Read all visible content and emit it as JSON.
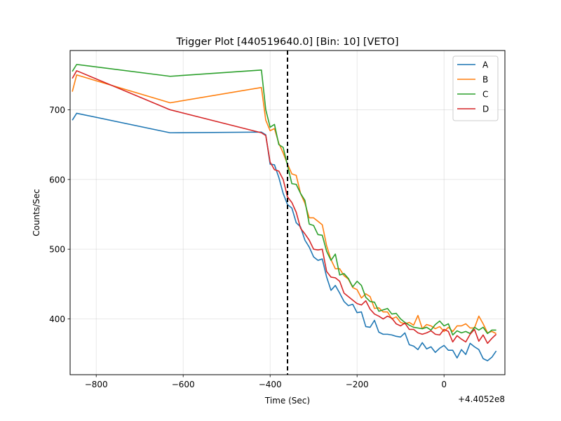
{
  "chart_data": {
    "type": "line",
    "title": "Trigger Plot [440519640.0] [Bin: 10] [VETO]",
    "xlabel": "Time (Sec)",
    "ylabel": "Counts/Sec",
    "x_offset_label": "+4.4052e8",
    "xlim": [
      -860,
      140
    ],
    "ylim": [
      320,
      785
    ],
    "xticks": [
      -800,
      -600,
      -400,
      -200,
      0
    ],
    "xtick_labels": [
      "−800",
      "−600",
      "−400",
      "−200",
      "0"
    ],
    "yticks": [
      400,
      500,
      600,
      700
    ],
    "ytick_labels": [
      "400",
      "500",
      "600",
      "700"
    ],
    "grid": true,
    "legend_position": "top-right",
    "vline": {
      "x": -360,
      "style": "dashed",
      "color": "#000000"
    },
    "series": [
      {
        "name": "A",
        "color": "#1f77b4",
        "x": [
          -855,
          -845,
          -630,
          -420,
          -410,
          -400,
          -390,
          -380,
          -370,
          -360,
          -350,
          -340,
          -330,
          -320,
          -310,
          -300,
          -290,
          -280,
          -270,
          -260,
          -250,
          -240,
          -230,
          -220,
          -210,
          -200,
          -190,
          -180,
          -170,
          -160,
          -150,
          -140,
          -130,
          -120,
          -110,
          -100,
          -90,
          -80,
          -70,
          -60,
          -50,
          -40,
          -30,
          -20,
          -10,
          0,
          10,
          20,
          30,
          40,
          50,
          60,
          70,
          80,
          90,
          100,
          110,
          120
        ],
        "values": [
          685,
          695,
          667,
          668,
          664,
          622,
          621,
          603,
          580,
          564,
          559,
          538,
          532,
          513,
          503,
          489,
          484,
          486,
          460,
          441,
          448,
          437,
          425,
          419,
          421,
          409,
          410,
          389,
          388,
          398,
          381,
          378,
          378,
          377,
          375,
          374,
          380,
          363,
          361,
          356,
          366,
          357,
          360,
          352,
          358,
          362,
          355,
          355,
          344,
          356,
          349,
          365,
          360,
          356,
          343,
          340,
          345,
          354
        ]
      },
      {
        "name": "B",
        "color": "#ff7f0e",
        "x": [
          -855,
          -845,
          -630,
          -420,
          -410,
          -400,
          -390,
          -380,
          -370,
          -360,
          -350,
          -340,
          -330,
          -320,
          -310,
          -300,
          -290,
          -280,
          -270,
          -260,
          -250,
          -240,
          -230,
          -220,
          -210,
          -200,
          -190,
          -180,
          -170,
          -160,
          -150,
          -140,
          -130,
          -120,
          -110,
          -100,
          -90,
          -80,
          -70,
          -60,
          -50,
          -40,
          -30,
          -20,
          -10,
          0,
          10,
          20,
          30,
          40,
          50,
          60,
          70,
          80,
          90,
          100,
          110,
          120
        ],
        "values": [
          726,
          750,
          710,
          732,
          685,
          670,
          673,
          652,
          638,
          622,
          608,
          606,
          580,
          566,
          545,
          545,
          540,
          535,
          505,
          485,
          472,
          472,
          462,
          457,
          445,
          442,
          430,
          436,
          432,
          415,
          416,
          410,
          410,
          400,
          403,
          395,
          393,
          395,
          391,
          405,
          386,
          392,
          390,
          386,
          389,
          382,
          388,
          382,
          390,
          390,
          393,
          387,
          387,
          404,
          393,
          380,
          382,
          379
        ]
      },
      {
        "name": "C",
        "color": "#2ca02c",
        "x": [
          -855,
          -845,
          -630,
          -420,
          -410,
          -400,
          -390,
          -380,
          -370,
          -360,
          -350,
          -340,
          -330,
          -320,
          -310,
          -300,
          -290,
          -280,
          -270,
          -260,
          -250,
          -240,
          -230,
          -220,
          -210,
          -200,
          -190,
          -180,
          -170,
          -160,
          -150,
          -140,
          -130,
          -120,
          -110,
          -100,
          -90,
          -80,
          -70,
          -60,
          -50,
          -40,
          -30,
          -20,
          -10,
          0,
          10,
          20,
          30,
          40,
          50,
          60,
          70,
          80,
          90,
          100,
          110,
          120
        ],
        "values": [
          755,
          765,
          748,
          757,
          700,
          675,
          679,
          650,
          646,
          620,
          594,
          593,
          580,
          570,
          536,
          534,
          521,
          520,
          497,
          484,
          493,
          463,
          465,
          458,
          446,
          454,
          448,
          431,
          425,
          424,
          411,
          413,
          415,
          407,
          408,
          400,
          395,
          391,
          388,
          387,
          386,
          388,
          384,
          392,
          397,
          390,
          393,
          377,
          383,
          380,
          382,
          379,
          388,
          384,
          388,
          379,
          384,
          384
        ]
      },
      {
        "name": "D",
        "color": "#d62728",
        "x": [
          -855,
          -845,
          -630,
          -420,
          -410,
          -400,
          -390,
          -380,
          -370,
          -360,
          -350,
          -340,
          -330,
          -320,
          -310,
          -300,
          -290,
          -280,
          -270,
          -260,
          -250,
          -240,
          -230,
          -220,
          -210,
          -200,
          -190,
          -180,
          -170,
          -160,
          -150,
          -140,
          -130,
          -120,
          -110,
          -100,
          -90,
          -80,
          -70,
          -60,
          -50,
          -40,
          -30,
          -20,
          -10,
          0,
          10,
          20,
          30,
          40,
          50,
          60,
          70,
          80,
          90,
          100,
          110,
          120
        ],
        "values": [
          745,
          756,
          700,
          667,
          663,
          625,
          614,
          612,
          600,
          575,
          567,
          553,
          530,
          522,
          513,
          500,
          499,
          500,
          468,
          460,
          459,
          454,
          437,
          432,
          427,
          422,
          420,
          426,
          414,
          407,
          404,
          400,
          404,
          401,
          393,
          390,
          394,
          385,
          385,
          380,
          378,
          380,
          383,
          378,
          377,
          385,
          382,
          367,
          376,
          371,
          367,
          378,
          385,
          368,
          377,
          365,
          372,
          378
        ]
      }
    ]
  }
}
